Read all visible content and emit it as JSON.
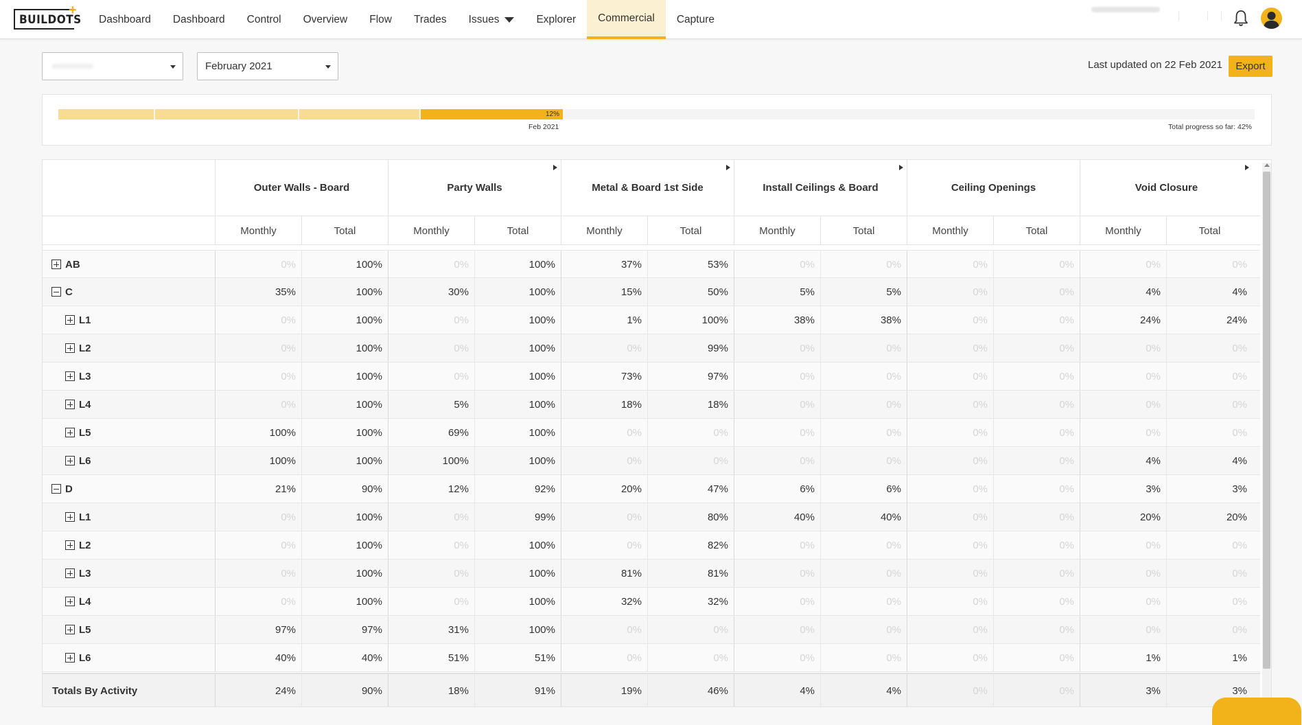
{
  "nav": {
    "logo_text": "BUILDOTS",
    "items": [
      {
        "label": "Dashboard"
      },
      {
        "label": "Dashboard"
      },
      {
        "label": "Control"
      },
      {
        "label": "Overview"
      },
      {
        "label": "Flow"
      },
      {
        "label": "Trades"
      },
      {
        "label": "Issues"
      },
      {
        "label": "Explorer"
      },
      {
        "label": "Commercial"
      },
      {
        "label": "Capture"
      }
    ],
    "active": "Commercial",
    "accent": "#f2b21a"
  },
  "filters": {
    "project_select": "",
    "month_select": "February 2021"
  },
  "last_updated": "Last updated on 22 Feb 2021",
  "export_label": "Export",
  "progress": {
    "current_label": "12%",
    "month_label": "Feb 2021",
    "total_label": "Total progress so far: 42%"
  },
  "table": {
    "groups": [
      {
        "name": "Outer Walls - Board"
      },
      {
        "name": "Party Walls"
      },
      {
        "name": "Metal & Board 1st Side"
      },
      {
        "name": "Install Ceilings & Board"
      },
      {
        "name": "Ceiling Openings"
      },
      {
        "name": "Void Closure"
      }
    ],
    "sub_monthly": "Monthly",
    "sub_total": "Total",
    "rows": [
      {
        "label": "AB",
        "indent": 0,
        "expanded": false,
        "values": [
          "0%",
          "100%",
          "0%",
          "100%",
          "37%",
          "53%",
          "0%",
          "0%",
          "0%",
          "0%",
          "0%",
          "0%"
        ]
      },
      {
        "label": "C",
        "indent": 0,
        "expanded": true,
        "values": [
          "35%",
          "100%",
          "30%",
          "100%",
          "15%",
          "50%",
          "5%",
          "5%",
          "0%",
          "0%",
          "4%",
          "4%"
        ]
      },
      {
        "label": "L1",
        "indent": 1,
        "expanded": false,
        "values": [
          "0%",
          "100%",
          "0%",
          "100%",
          "1%",
          "100%",
          "38%",
          "38%",
          "0%",
          "0%",
          "24%",
          "24%"
        ]
      },
      {
        "label": "L2",
        "indent": 1,
        "expanded": false,
        "values": [
          "0%",
          "100%",
          "0%",
          "100%",
          "0%",
          "99%",
          "0%",
          "0%",
          "0%",
          "0%",
          "0%",
          "0%"
        ]
      },
      {
        "label": "L3",
        "indent": 1,
        "expanded": false,
        "values": [
          "0%",
          "100%",
          "0%",
          "100%",
          "73%",
          "97%",
          "0%",
          "0%",
          "0%",
          "0%",
          "0%",
          "0%"
        ]
      },
      {
        "label": "L4",
        "indent": 1,
        "expanded": false,
        "values": [
          "0%",
          "100%",
          "5%",
          "100%",
          "18%",
          "18%",
          "0%",
          "0%",
          "0%",
          "0%",
          "0%",
          "0%"
        ]
      },
      {
        "label": "L5",
        "indent": 1,
        "expanded": false,
        "values": [
          "100%",
          "100%",
          "69%",
          "100%",
          "0%",
          "0%",
          "0%",
          "0%",
          "0%",
          "0%",
          "0%",
          "0%"
        ]
      },
      {
        "label": "L6",
        "indent": 1,
        "expanded": false,
        "values": [
          "100%",
          "100%",
          "100%",
          "100%",
          "0%",
          "0%",
          "0%",
          "0%",
          "0%",
          "0%",
          "4%",
          "4%"
        ]
      },
      {
        "label": "D",
        "indent": 0,
        "expanded": true,
        "values": [
          "21%",
          "90%",
          "12%",
          "92%",
          "20%",
          "47%",
          "6%",
          "6%",
          "0%",
          "0%",
          "3%",
          "3%"
        ]
      },
      {
        "label": "L1",
        "indent": 1,
        "expanded": false,
        "values": [
          "0%",
          "100%",
          "0%",
          "99%",
          "0%",
          "80%",
          "40%",
          "40%",
          "0%",
          "0%",
          "20%",
          "20%"
        ]
      },
      {
        "label": "L2",
        "indent": 1,
        "expanded": false,
        "values": [
          "0%",
          "100%",
          "0%",
          "100%",
          "0%",
          "82%",
          "0%",
          "0%",
          "0%",
          "0%",
          "0%",
          "0%"
        ]
      },
      {
        "label": "L3",
        "indent": 1,
        "expanded": false,
        "values": [
          "0%",
          "100%",
          "0%",
          "100%",
          "81%",
          "81%",
          "0%",
          "0%",
          "0%",
          "0%",
          "0%",
          "0%"
        ]
      },
      {
        "label": "L4",
        "indent": 1,
        "expanded": false,
        "values": [
          "0%",
          "100%",
          "0%",
          "100%",
          "32%",
          "32%",
          "0%",
          "0%",
          "0%",
          "0%",
          "0%",
          "0%"
        ]
      },
      {
        "label": "L5",
        "indent": 1,
        "expanded": false,
        "values": [
          "97%",
          "97%",
          "31%",
          "100%",
          "0%",
          "0%",
          "0%",
          "0%",
          "0%",
          "0%",
          "0%",
          "0%"
        ]
      },
      {
        "label": "L6",
        "indent": 1,
        "expanded": false,
        "values": [
          "40%",
          "40%",
          "51%",
          "51%",
          "0%",
          "0%",
          "0%",
          "0%",
          "0%",
          "0%",
          "1%",
          "1%"
        ]
      }
    ],
    "totals": {
      "label": "Totals By Activity",
      "values": [
        "24%",
        "90%",
        "18%",
        "91%",
        "19%",
        "46%",
        "4%",
        "4%",
        "0%",
        "0%",
        "3%",
        "3%"
      ]
    }
  }
}
